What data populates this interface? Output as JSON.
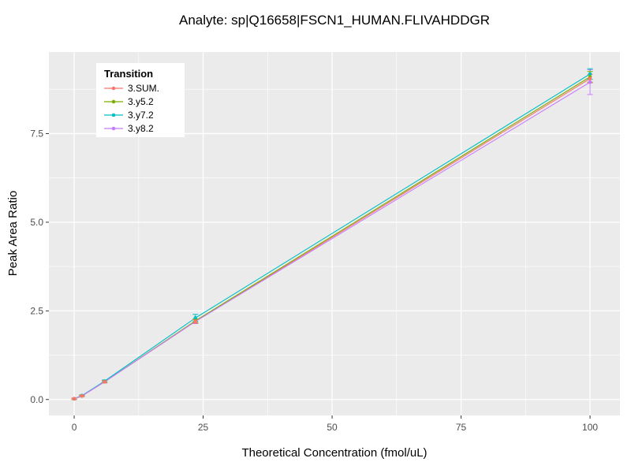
{
  "title": "Analyte: sp|Q16658|FSCN1_HUMAN.FLIVAHDDGR",
  "chart_data": {
    "type": "line",
    "title": "Analyte: sp|Q16658|FSCN1_HUMAN.FLIVAHDDGR",
    "xlabel": "Theoretical Concentration (fmol/uL)",
    "ylabel": "Peak Area Ratio",
    "xlim": [
      -4.9,
      105.8
    ],
    "ylim": [
      -0.45,
      9.8
    ],
    "xticks": [
      0,
      25,
      50,
      75,
      100
    ],
    "xtick_labels": [
      "0",
      "25",
      "50",
      "75",
      "100"
    ],
    "xminor": [
      12.5,
      37.5,
      62.5,
      87.5
    ],
    "yticks": [
      0,
      2.5,
      5,
      7.5
    ],
    "ytick_labels": [
      "0.0",
      "2.5",
      "5.0",
      "7.5"
    ],
    "yminor": [
      1.25,
      3.75,
      6.25,
      8.75
    ],
    "grid": true,
    "panel_background": "#EBEBEB",
    "grid_color": "#FFFFFF",
    "tick_color": "#333333",
    "tick_label_color": "#4D4D4D",
    "legend": {
      "title": "Transition",
      "position": "top-left-inside",
      "background": "#FFFFFF"
    },
    "x": [
      0,
      1.5,
      5.9,
      23.5,
      100
    ],
    "series": [
      {
        "name": "3.SUM.",
        "color": "#F8766D",
        "y": [
          0.02,
          0.1,
          0.5,
          2.2,
          9.05
        ],
        "yerr": [
          0.02,
          0.02,
          0.03,
          0.05,
          0.12
        ]
      },
      {
        "name": "3.y5.2",
        "color": "#7CAE00",
        "y": [
          0.02,
          0.1,
          0.5,
          2.22,
          9.1
        ],
        "yerr": [
          0.02,
          0.02,
          0.03,
          0.05,
          0.15
        ]
      },
      {
        "name": "3.y7.2",
        "color": "#00BFC4",
        "y": [
          0.02,
          0.11,
          0.52,
          2.3,
          9.18
        ],
        "yerr": [
          0.02,
          0.02,
          0.03,
          0.1,
          0.15
        ]
      },
      {
        "name": "3.y8.2",
        "color": "#C77CFF",
        "y": [
          0.02,
          0.1,
          0.5,
          2.2,
          8.95
        ],
        "yerr": [
          0.02,
          0.02,
          0.03,
          0.06,
          0.35
        ]
      }
    ]
  }
}
